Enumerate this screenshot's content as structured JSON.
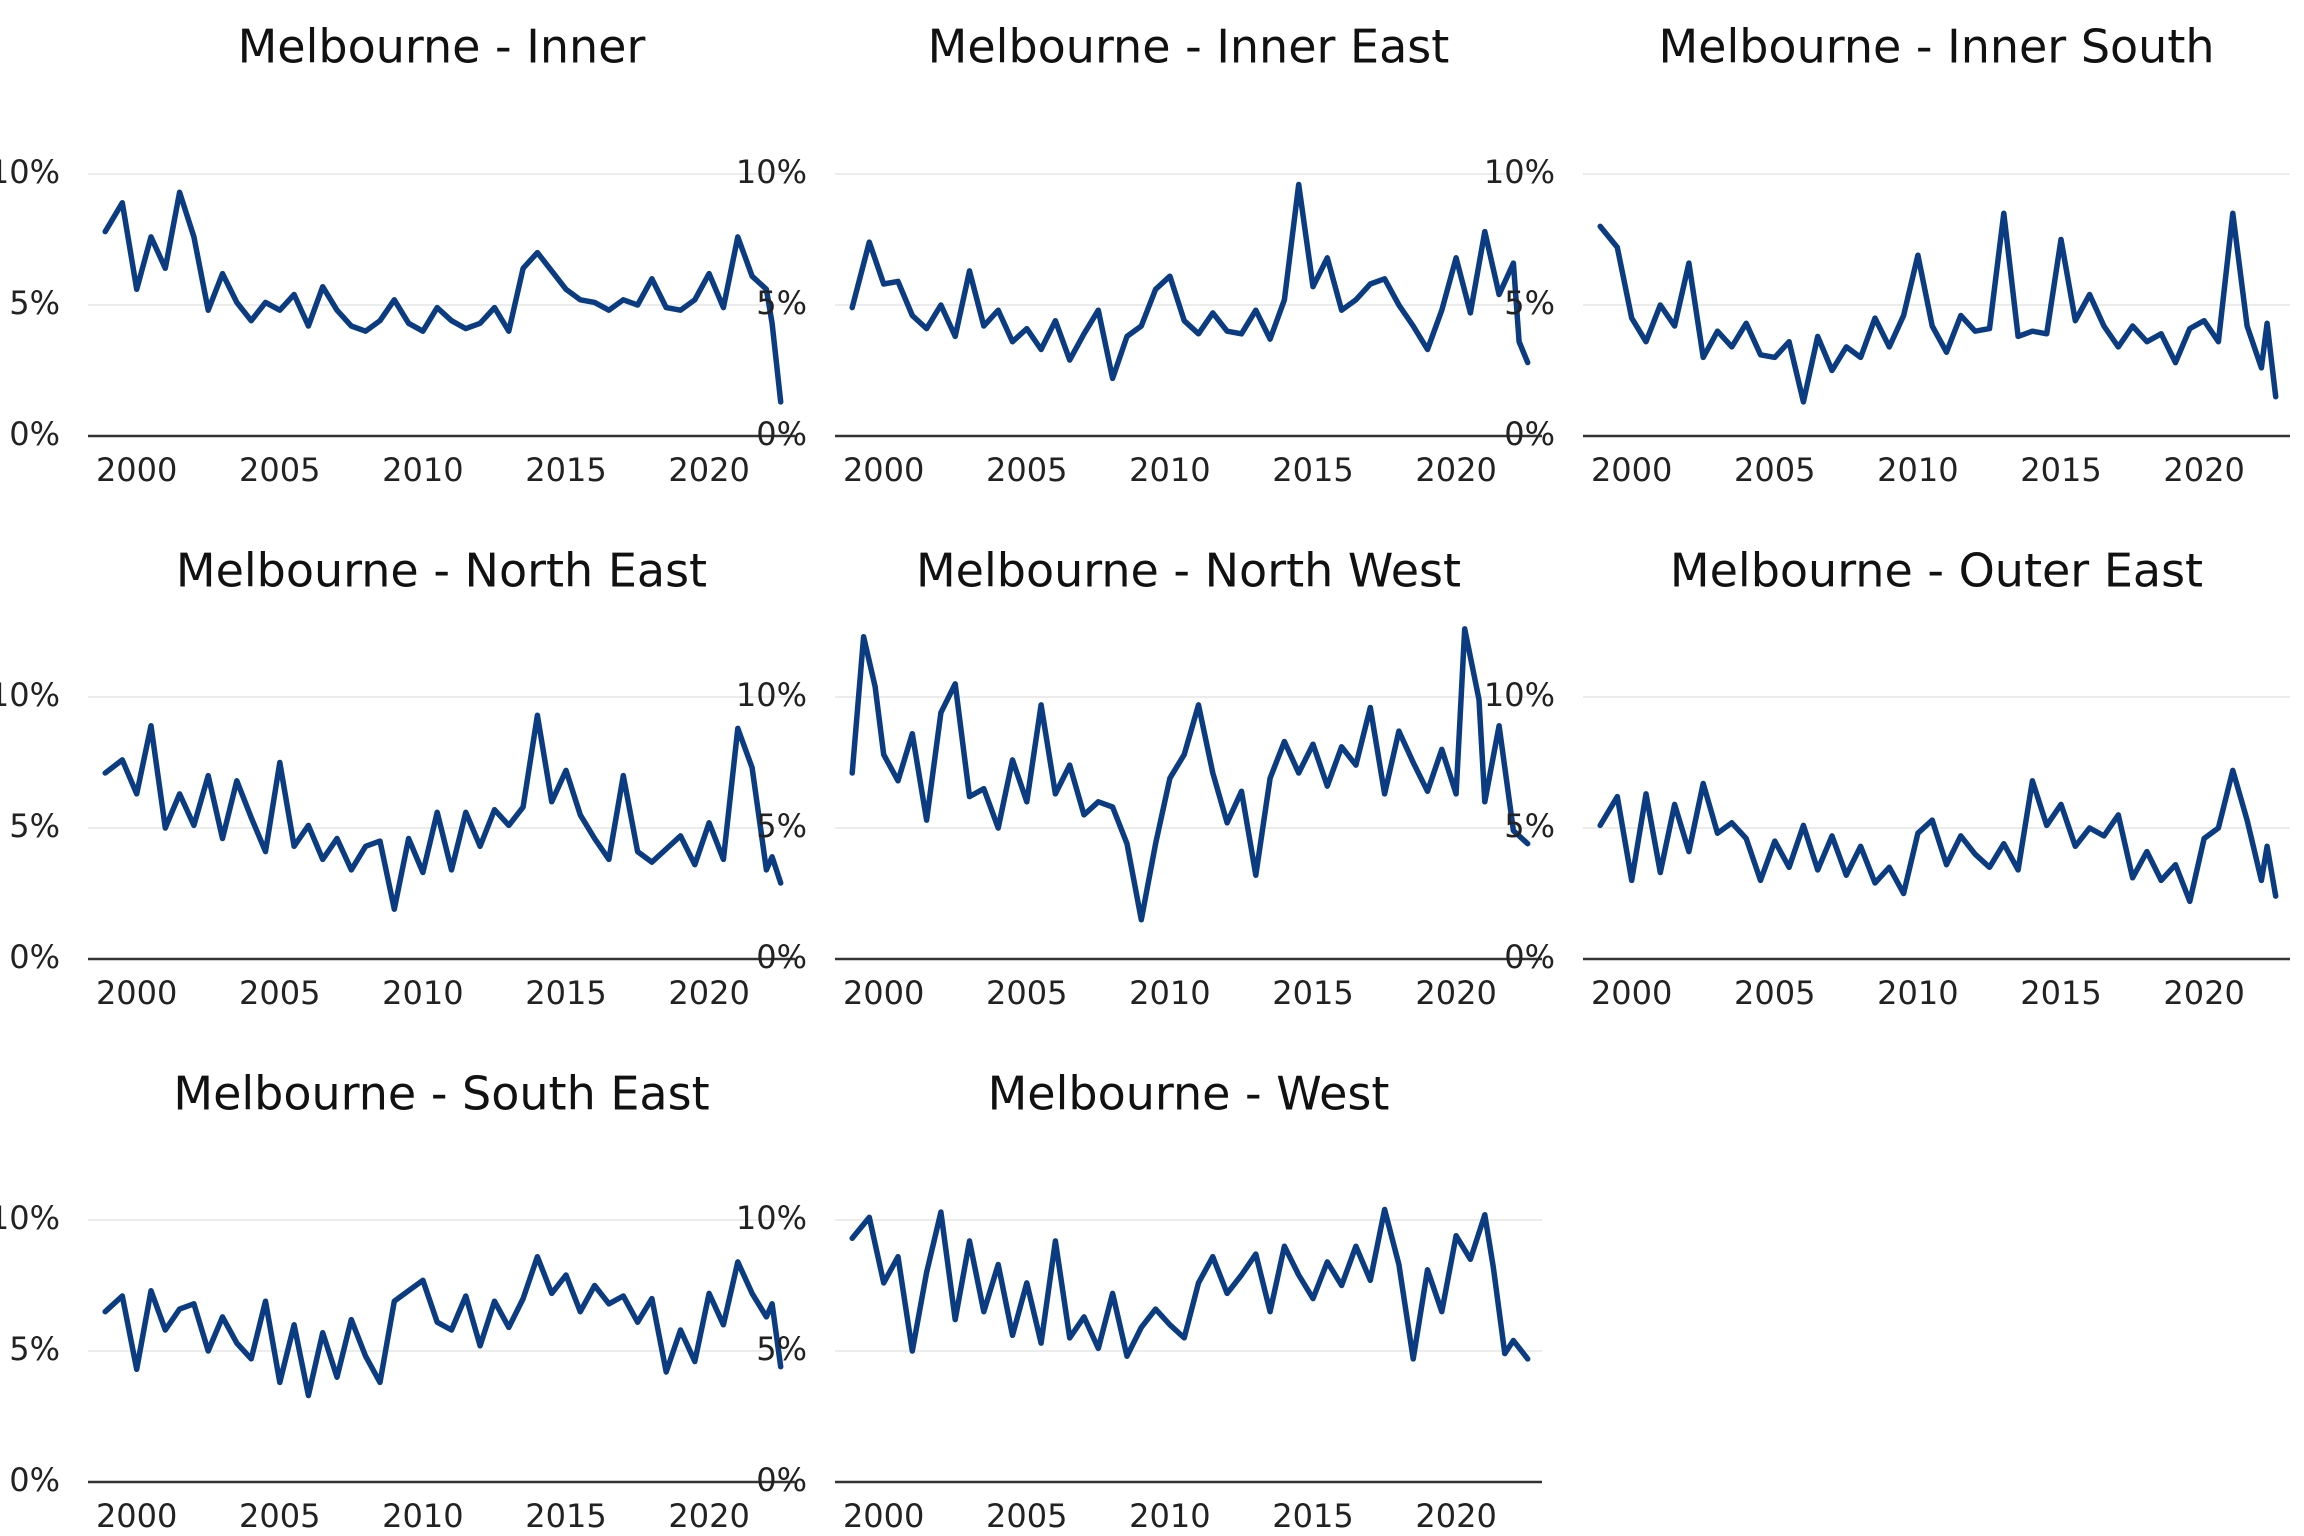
{
  "chart_data": [
    {
      "type": "line",
      "title": "Melbourne - Inner",
      "xlabel": "",
      "ylabel": "",
      "xlim": [
        1998.3,
        2023.0
      ],
      "ylim": [
        0,
        10
      ],
      "x_ticks": [
        2000,
        2005,
        2010,
        2015,
        2020
      ],
      "x_tick_labels": [
        "2000",
        "2005",
        "2010",
        "2015",
        "2020"
      ],
      "y_ticks": [
        0,
        5,
        10
      ],
      "y_tick_labels": [
        "0%",
        "5%",
        "10%"
      ],
      "grid": "horizontal",
      "series": [
        {
          "x": [
            1998.9,
            1999.5,
            2000,
            2000.5,
            2001,
            2001.5,
            2002,
            2002.5,
            2003,
            2003.5,
            2004,
            2004.5,
            2005,
            2005.5,
            2006,
            2006.5,
            2007,
            2007.5,
            2008,
            2008.5,
            2009,
            2009.5,
            2010,
            2010.5,
            2011,
            2011.5,
            2012,
            2012.5,
            2013,
            2013.5,
            2014,
            2014.5,
            2015,
            2015.5,
            2016,
            2016.5,
            2017,
            2017.5,
            2018,
            2018.5,
            2019,
            2019.5,
            2020,
            2020.5,
            2021,
            2021.5,
            2022,
            2022.2,
            2022.5
          ],
          "values": [
            7.8,
            8.9,
            5.6,
            7.6,
            6.4,
            9.3,
            7.6,
            4.8,
            6.2,
            5.1,
            4.4,
            5.1,
            4.8,
            5.4,
            4.2,
            5.7,
            4.8,
            4.2,
            4.0,
            4.4,
            5.2,
            4.3,
            4.0,
            4.9,
            4.4,
            4.1,
            4.3,
            4.9,
            4.0,
            6.4,
            7.0,
            6.3,
            5.6,
            5.2,
            5.1,
            4.8,
            5.2,
            5.0,
            6.0,
            4.9,
            4.8,
            5.2,
            6.2,
            4.9,
            7.6,
            6.1,
            5.6,
            4.3,
            1.3
          ]
        }
      ]
    },
    {
      "type": "line",
      "title": "Melbourne - Inner East",
      "xlabel": "",
      "ylabel": "",
      "xlim": [
        1998.3,
        2023.0
      ],
      "ylim": [
        0,
        10
      ],
      "x_ticks": [
        2000,
        2005,
        2010,
        2015,
        2020
      ],
      "x_tick_labels": [
        "2000",
        "2005",
        "2010",
        "2015",
        "2020"
      ],
      "y_ticks": [
        0,
        5,
        10
      ],
      "y_tick_labels": [
        "0%",
        "5%",
        "10%"
      ],
      "grid": "horizontal",
      "series": [
        {
          "x": [
            1998.9,
            1999.5,
            2000,
            2000.5,
            2001,
            2001.5,
            2002,
            2002.5,
            2003,
            2003.5,
            2004,
            2004.5,
            2005,
            2005.5,
            2006,
            2006.5,
            2007,
            2007.5,
            2008,
            2008.5,
            2009,
            2009.5,
            2010,
            2010.5,
            2011,
            2011.5,
            2012,
            2012.5,
            2013,
            2013.5,
            2014,
            2014.5,
            2015,
            2015.5,
            2016,
            2016.5,
            2017,
            2017.5,
            2018,
            2018.5,
            2019,
            2019.5,
            2020,
            2020.5,
            2021,
            2021.5,
            2022,
            2022.2,
            2022.5
          ],
          "values": [
            4.9,
            7.4,
            5.8,
            5.9,
            4.6,
            4.1,
            5.0,
            3.8,
            6.3,
            4.2,
            4.8,
            3.6,
            4.1,
            3.3,
            4.4,
            2.9,
            3.9,
            4.8,
            2.2,
            3.8,
            4.2,
            5.6,
            6.1,
            4.4,
            3.9,
            4.7,
            4.0,
            3.9,
            4.8,
            3.7,
            5.2,
            9.6,
            5.7,
            6.8,
            4.8,
            5.2,
            5.8,
            6.0,
            5.0,
            4.2,
            3.3,
            4.8,
            6.8,
            4.7,
            7.8,
            5.4,
            6.6,
            3.6,
            2.8
          ]
        }
      ]
    },
    {
      "type": "line",
      "title": "Melbourne - Inner South",
      "xlabel": "",
      "ylabel": "",
      "xlim": [
        1998.3,
        2023.0
      ],
      "ylim": [
        0,
        10
      ],
      "x_ticks": [
        2000,
        2005,
        2010,
        2015,
        2020
      ],
      "x_tick_labels": [
        "2000",
        "2005",
        "2010",
        "2015",
        "2020"
      ],
      "y_ticks": [
        0,
        5,
        10
      ],
      "y_tick_labels": [
        "0%",
        "5%",
        "10%"
      ],
      "grid": "horizontal",
      "series": [
        {
          "x": [
            1998.9,
            1999.5,
            2000,
            2000.5,
            2001,
            2001.5,
            2002,
            2002.5,
            2003,
            2003.5,
            2004,
            2004.5,
            2005,
            2005.5,
            2006,
            2006.5,
            2007,
            2007.5,
            2008,
            2008.5,
            2009,
            2009.5,
            2010,
            2010.5,
            2011,
            2011.5,
            2012,
            2012.5,
            2013,
            2013.5,
            2014,
            2014.5,
            2015,
            2015.5,
            2016,
            2016.5,
            2017,
            2017.5,
            2018,
            2018.5,
            2019,
            2019.5,
            2020,
            2020.5,
            2021,
            2021.5,
            2022,
            2022.2,
            2022.5
          ],
          "values": [
            8.0,
            7.2,
            4.5,
            3.6,
            5.0,
            4.2,
            6.6,
            3.0,
            4.0,
            3.4,
            4.3,
            3.1,
            3.0,
            3.6,
            1.3,
            3.8,
            2.5,
            3.4,
            3.0,
            4.5,
            3.4,
            4.6,
            6.9,
            4.2,
            3.2,
            4.6,
            4.0,
            4.1,
            8.5,
            3.8,
            4.0,
            3.9,
            7.5,
            4.4,
            5.4,
            4.2,
            3.4,
            4.2,
            3.6,
            3.9,
            2.8,
            4.1,
            4.4,
            3.6,
            8.5,
            4.2,
            2.6,
            4.3,
            1.5
          ]
        }
      ]
    },
    {
      "type": "line",
      "title": "Melbourne - North East",
      "xlabel": "",
      "ylabel": "",
      "xlim": [
        1998.3,
        2023.0
      ],
      "ylim": [
        0,
        10
      ],
      "x_ticks": [
        2000,
        2005,
        2010,
        2015,
        2020
      ],
      "x_tick_labels": [
        "2000",
        "2005",
        "2010",
        "2015",
        "2020"
      ],
      "y_ticks": [
        0,
        5,
        10
      ],
      "y_tick_labels": [
        "0%",
        "5%",
        "10%"
      ],
      "grid": "horizontal",
      "series": [
        {
          "x": [
            1998.9,
            1999.5,
            2000,
            2000.5,
            2001,
            2001.5,
            2002,
            2002.5,
            2003,
            2003.5,
            2004,
            2004.5,
            2005,
            2005.5,
            2006,
            2006.5,
            2007,
            2007.5,
            2008,
            2008.5,
            2009,
            2009.5,
            2010,
            2010.5,
            2011,
            2011.5,
            2012,
            2012.5,
            2013,
            2013.5,
            2014,
            2014.5,
            2015,
            2015.5,
            2016,
            2016.5,
            2017,
            2017.5,
            2018,
            2018.5,
            2019,
            2019.5,
            2020,
            2020.5,
            2021,
            2021.5,
            2022,
            2022.2,
            2022.5
          ],
          "values": [
            7.1,
            7.6,
            6.3,
            8.9,
            5.0,
            6.3,
            5.1,
            7.0,
            4.6,
            6.8,
            5.4,
            4.1,
            7.5,
            4.3,
            5.1,
            3.8,
            4.6,
            3.4,
            4.3,
            4.5,
            1.9,
            4.6,
            3.3,
            5.6,
            3.4,
            5.6,
            4.3,
            5.7,
            5.1,
            5.8,
            9.3,
            6.0,
            7.2,
            5.5,
            4.6,
            3.8,
            7.0,
            4.1,
            3.7,
            4.2,
            4.7,
            3.6,
            5.2,
            3.8,
            8.8,
            7.3,
            3.4,
            3.9,
            2.9
          ]
        }
      ]
    },
    {
      "type": "line",
      "title": "Melbourne - North West",
      "xlabel": "",
      "ylabel": "",
      "xlim": [
        1998.3,
        2023.0
      ],
      "ylim": [
        0,
        10
      ],
      "x_ticks": [
        2000,
        2005,
        2010,
        2015,
        2020
      ],
      "x_tick_labels": [
        "2000",
        "2005",
        "2010",
        "2015",
        "2020"
      ],
      "y_ticks": [
        0,
        5,
        10
      ],
      "y_tick_labels": [
        "0%",
        "5%",
        "10%"
      ],
      "grid": "horizontal",
      "series": [
        {
          "x": [
            1998.9,
            1999.3,
            1999.7,
            2000,
            2000.5,
            2001,
            2001.5,
            2002,
            2002.5,
            2003,
            2003.5,
            2004,
            2004.5,
            2005,
            2005.5,
            2006,
            2006.5,
            2007,
            2007.5,
            2008,
            2008.5,
            2009,
            2009.5,
            2010,
            2010.5,
            2011,
            2011.5,
            2012,
            2012.5,
            2013,
            2013.5,
            2014,
            2014.5,
            2015,
            2015.5,
            2016,
            2016.5,
            2017,
            2017.5,
            2018,
            2018.5,
            2019,
            2019.5,
            2020,
            2020.3,
            2020.8,
            2021,
            2021.5,
            2022,
            2022.5
          ],
          "values": [
            7.1,
            12.3,
            10.4,
            7.8,
            6.8,
            8.6,
            5.3,
            9.4,
            10.5,
            6.2,
            6.5,
            5.0,
            7.6,
            6.0,
            9.7,
            6.3,
            7.4,
            5.5,
            6.0,
            5.8,
            4.4,
            1.5,
            4.4,
            6.9,
            7.8,
            9.7,
            7.1,
            5.2,
            6.4,
            3.2,
            6.9,
            8.3,
            7.1,
            8.2,
            6.6,
            8.1,
            7.4,
            9.6,
            6.3,
            8.7,
            7.5,
            6.4,
            8.0,
            6.3,
            12.6,
            9.9,
            6.0,
            8.9,
            4.9,
            4.4
          ]
        }
      ]
    },
    {
      "type": "line",
      "title": "Melbourne - Outer East",
      "xlabel": "",
      "ylabel": "",
      "xlim": [
        1998.3,
        2023.0
      ],
      "ylim": [
        0,
        10
      ],
      "x_ticks": [
        2000,
        2005,
        2010,
        2015,
        2020
      ],
      "x_tick_labels": [
        "2000",
        "2005",
        "2010",
        "2015",
        "2020"
      ],
      "y_ticks": [
        0,
        5,
        10
      ],
      "y_tick_labels": [
        "0%",
        "5%",
        "10%"
      ],
      "grid": "horizontal",
      "series": [
        {
          "x": [
            1998.9,
            1999.5,
            2000,
            2000.5,
            2001,
            2001.5,
            2002,
            2002.5,
            2003,
            2003.5,
            2004,
            2004.5,
            2005,
            2005.5,
            2006,
            2006.5,
            2007,
            2007.5,
            2008,
            2008.5,
            2009,
            2009.5,
            2010,
            2010.5,
            2011,
            2011.5,
            2012,
            2012.5,
            2013,
            2013.5,
            2014,
            2014.5,
            2015,
            2015.5,
            2016,
            2016.5,
            2017,
            2017.5,
            2018,
            2018.5,
            2019,
            2019.5,
            2020,
            2020.5,
            2021,
            2021.5,
            2022,
            2022.2,
            2022.5
          ],
          "values": [
            5.1,
            6.2,
            3.0,
            6.3,
            3.3,
            5.9,
            4.1,
            6.7,
            4.8,
            5.2,
            4.6,
            3.0,
            4.5,
            3.5,
            5.1,
            3.4,
            4.7,
            3.2,
            4.3,
            2.9,
            3.5,
            2.5,
            4.8,
            5.3,
            3.6,
            4.7,
            4.0,
            3.5,
            4.4,
            3.4,
            6.8,
            5.1,
            5.9,
            4.3,
            5.0,
            4.7,
            5.5,
            3.1,
            4.1,
            3.0,
            3.6,
            2.2,
            4.6,
            5.0,
            7.2,
            5.3,
            3.0,
            4.3,
            2.4
          ]
        }
      ]
    },
    {
      "type": "line",
      "title": "Melbourne - South East",
      "xlabel": "",
      "ylabel": "",
      "xlim": [
        1998.3,
        2023.0
      ],
      "ylim": [
        0,
        10
      ],
      "x_ticks": [
        2000,
        2005,
        2010,
        2015,
        2020
      ],
      "x_tick_labels": [
        "2000",
        "2005",
        "2010",
        "2015",
        "2020"
      ],
      "y_ticks": [
        0,
        5,
        10
      ],
      "y_tick_labels": [
        "0%",
        "5%",
        "10%"
      ],
      "grid": "horizontal",
      "series": [
        {
          "x": [
            1998.9,
            1999.5,
            2000,
            2000.5,
            2001,
            2001.5,
            2002,
            2002.5,
            2003,
            2003.5,
            2004,
            2004.5,
            2005,
            2005.5,
            2006,
            2006.5,
            2007,
            2007.5,
            2008,
            2008.5,
            2009,
            2009.5,
            2010,
            2010.5,
            2011,
            2011.5,
            2012,
            2012.5,
            2013,
            2013.5,
            2014,
            2014.5,
            2015,
            2015.5,
            2016,
            2016.5,
            2017,
            2017.5,
            2018,
            2018.5,
            2019,
            2019.5,
            2020,
            2020.5,
            2021,
            2021.5,
            2022,
            2022.2,
            2022.5
          ],
          "values": [
            6.5,
            7.1,
            4.3,
            7.3,
            5.8,
            6.6,
            6.8,
            5.0,
            6.3,
            5.3,
            4.7,
            6.9,
            3.8,
            6.0,
            3.3,
            5.7,
            4.0,
            6.2,
            4.8,
            3.8,
            6.9,
            7.3,
            7.7,
            6.1,
            5.8,
            7.1,
            5.2,
            6.9,
            5.9,
            7.0,
            8.6,
            7.2,
            7.9,
            6.5,
            7.5,
            6.8,
            7.1,
            6.1,
            7.0,
            4.2,
            5.8,
            4.6,
            7.2,
            6.0,
            8.4,
            7.2,
            6.3,
            6.8,
            4.4
          ]
        }
      ]
    },
    {
      "type": "line",
      "title": "Melbourne - West",
      "xlabel": "",
      "ylabel": "",
      "xlim": [
        1998.3,
        2023.0
      ],
      "ylim": [
        0,
        10
      ],
      "x_ticks": [
        2000,
        2005,
        2010,
        2015,
        2020
      ],
      "x_tick_labels": [
        "2000",
        "2005",
        "2010",
        "2015",
        "2020"
      ],
      "y_ticks": [
        0,
        5,
        10
      ],
      "y_tick_labels": [
        "0%",
        "5%",
        "10%"
      ],
      "grid": "horizontal",
      "series": [
        {
          "x": [
            1998.9,
            1999.5,
            2000,
            2000.5,
            2001,
            2001.5,
            2002,
            2002.5,
            2003,
            2003.5,
            2004,
            2004.5,
            2005,
            2005.5,
            2006,
            2006.5,
            2007,
            2007.5,
            2008,
            2008.5,
            2009,
            2009.5,
            2010,
            2010.5,
            2011,
            2011.5,
            2012,
            2012.5,
            2013,
            2013.5,
            2014,
            2014.5,
            2015,
            2015.5,
            2016,
            2016.5,
            2017,
            2017.5,
            2018,
            2018.5,
            2019,
            2019.5,
            2020,
            2020.5,
            2021,
            2021.3,
            2021.7,
            2022,
            2022.5
          ],
          "values": [
            9.3,
            10.1,
            7.6,
            8.6,
            5.0,
            8.0,
            10.3,
            6.2,
            9.2,
            6.5,
            8.3,
            5.6,
            7.6,
            5.3,
            9.2,
            5.5,
            6.3,
            5.1,
            7.2,
            4.8,
            5.9,
            6.6,
            6.0,
            5.5,
            7.6,
            8.6,
            7.2,
            7.9,
            8.7,
            6.5,
            9.0,
            7.9,
            7.0,
            8.4,
            7.5,
            9.0,
            7.7,
            10.4,
            8.3,
            4.7,
            8.1,
            6.5,
            9.4,
            8.5,
            10.2,
            8.2,
            4.9,
            5.4,
            4.7
          ]
        }
      ]
    }
  ],
  "colors": {
    "series_line": "#0b3c82"
  }
}
